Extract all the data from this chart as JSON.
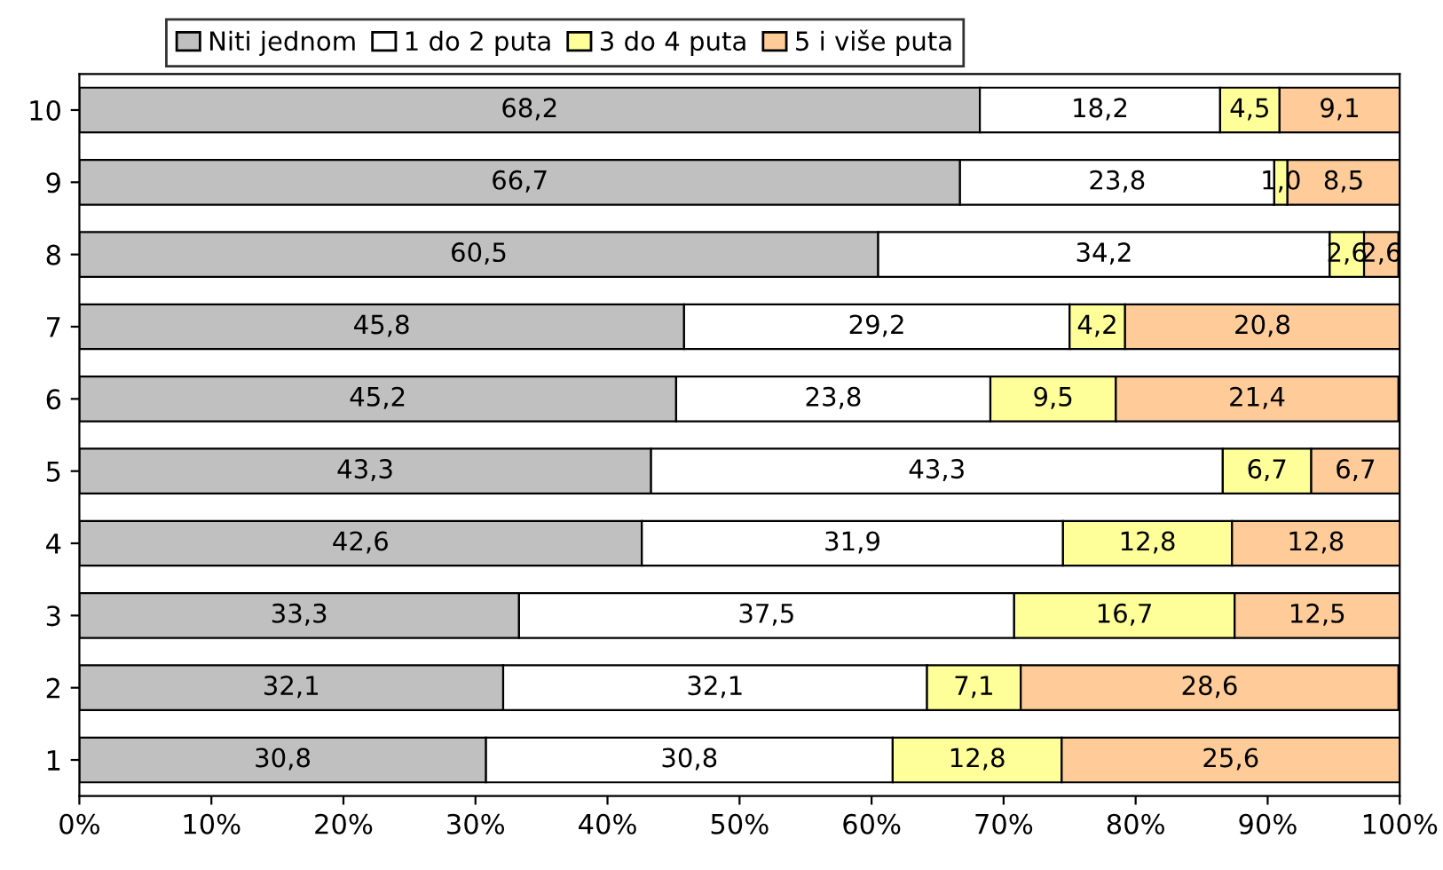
{
  "chart_data": {
    "type": "bar",
    "orientation": "horizontal",
    "stacked": true,
    "categories": [
      "10",
      "9",
      "8",
      "7",
      "6",
      "5",
      "4",
      "3",
      "2",
      "1"
    ],
    "series": [
      {
        "name": "Niti jednom",
        "color": "#c0c0c0",
        "values": [
          68.2,
          66.7,
          60.5,
          45.8,
          45.2,
          43.3,
          42.6,
          33.3,
          32.1,
          30.8
        ],
        "value_labels": [
          "68,2",
          "66,7",
          "60,5",
          "45,8",
          "45,2",
          "43,3",
          "42,6",
          "33,3",
          "32,1",
          "30,8"
        ]
      },
      {
        "name": "1 do 2 puta",
        "color": "#ffffff",
        "values": [
          18.2,
          23.8,
          34.2,
          29.2,
          23.8,
          43.3,
          31.9,
          37.5,
          32.1,
          30.8
        ],
        "value_labels": [
          "18,2",
          "23,8",
          "34,2",
          "29,2",
          "23,8",
          "43,3",
          "31,9",
          "37,5",
          "32,1",
          "30,8"
        ]
      },
      {
        "name": "3 do 4 puta",
        "color": "#ffff99",
        "values": [
          4.5,
          1.0,
          2.6,
          4.2,
          9.5,
          6.7,
          12.8,
          16.7,
          7.1,
          12.8
        ],
        "value_labels": [
          "4,5",
          "1,0",
          "2,6",
          "4,2",
          "9,5",
          "6,7",
          "12,8",
          "16,7",
          "7,1",
          "12,8"
        ]
      },
      {
        "name": "5 i više puta",
        "color": "#ffcc99",
        "values": [
          9.1,
          8.5,
          2.6,
          20.8,
          21.4,
          6.7,
          12.8,
          12.5,
          28.6,
          25.6
        ],
        "value_labels": [
          "9,1",
          "8,5",
          "2,6",
          "20,8",
          "21,4",
          "6,7",
          "12,8",
          "12,5",
          "28,6",
          "25,6"
        ]
      }
    ],
    "xlim": [
      0,
      100
    ],
    "xticks": [
      {
        "value": 0,
        "label": "0%"
      },
      {
        "value": 10,
        "label": "10%"
      },
      {
        "value": 20,
        "label": "20%"
      },
      {
        "value": 30,
        "label": "30%"
      },
      {
        "value": 40,
        "label": "40%"
      },
      {
        "value": 50,
        "label": "50%"
      },
      {
        "value": 60,
        "label": "60%"
      },
      {
        "value": 70,
        "label": "70%"
      },
      {
        "value": 80,
        "label": "80%"
      },
      {
        "value": 90,
        "label": "90%"
      },
      {
        "value": 100,
        "label": "100%"
      }
    ],
    "grid": false,
    "legend": "top"
  }
}
